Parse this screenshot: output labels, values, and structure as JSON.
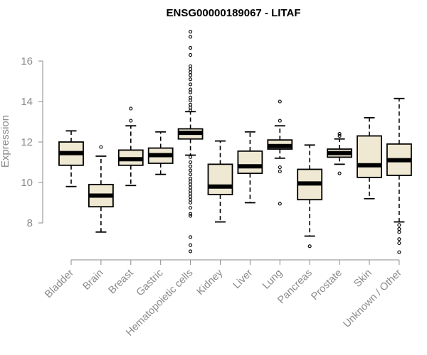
{
  "chart_data": {
    "type": "boxplot",
    "title": "ENSG00000189067 - LITAF",
    "ylabel": "Expression",
    "xlabel": "",
    "ylim": [
      6.2,
      17.6
    ],
    "yticks": [
      8,
      10,
      12,
      14,
      16
    ],
    "box_fill": "#efe9d3",
    "categories": [
      "Bladder",
      "Brain",
      "Breast",
      "Gastric",
      "Hematopoietic cells",
      "Kidney",
      "Liver",
      "Lung",
      "Pancreas",
      "Prostate",
      "Skin",
      "Unknown / Other"
    ],
    "boxes": [
      {
        "whisker_low": 9.8,
        "q1": 10.85,
        "median": 11.45,
        "q3": 12.0,
        "whisker_high": 12.55,
        "outliers": []
      },
      {
        "whisker_low": 7.55,
        "q1": 8.8,
        "median": 9.35,
        "q3": 9.9,
        "whisker_high": 11.3,
        "outliers": [
          11.75
        ]
      },
      {
        "whisker_low": 9.85,
        "q1": 10.85,
        "median": 11.15,
        "q3": 11.6,
        "whisker_high": 12.8,
        "outliers": [
          13.05,
          13.65
        ]
      },
      {
        "whisker_low": 10.4,
        "q1": 10.95,
        "median": 11.35,
        "q3": 11.7,
        "whisker_high": 12.5,
        "outliers": []
      },
      {
        "whisker_low": 11.35,
        "q1": 12.15,
        "median": 12.45,
        "q3": 12.65,
        "whisker_high": 13.5,
        "outliers": [
          17.45,
          17.2,
          16.65,
          16.3,
          15.75,
          15.6,
          15.45,
          15.3,
          15.1,
          14.85,
          14.6,
          14.45,
          14.2,
          14.05,
          13.85,
          13.7,
          13.55,
          11.25,
          11.0,
          10.8,
          10.6,
          10.4,
          10.2,
          10.05,
          9.9,
          9.75,
          9.6,
          9.45,
          9.3,
          9.15,
          9.0,
          8.75,
          8.45,
          8.35,
          7.3,
          6.9,
          6.6
        ]
      },
      {
        "whisker_low": 8.05,
        "q1": 9.4,
        "median": 9.8,
        "q3": 10.9,
        "whisker_high": 12.05,
        "outliers": []
      },
      {
        "whisker_low": 9.0,
        "q1": 10.45,
        "median": 10.8,
        "q3": 11.55,
        "whisker_high": 12.5,
        "outliers": []
      },
      {
        "whisker_low": 11.2,
        "q1": 11.65,
        "median": 11.8,
        "q3": 12.1,
        "whisker_high": 12.8,
        "outliers": [
          13.05,
          14.0,
          10.75,
          10.55,
          8.95
        ]
      },
      {
        "whisker_low": 7.35,
        "q1": 9.15,
        "median": 9.95,
        "q3": 10.65,
        "whisker_high": 11.85,
        "outliers": [
          6.85
        ]
      },
      {
        "whisker_low": 10.9,
        "q1": 11.25,
        "median": 11.45,
        "q3": 11.65,
        "whisker_high": 12.15,
        "outliers": [
          12.4,
          12.3,
          10.45
        ]
      },
      {
        "whisker_low": 9.2,
        "q1": 10.25,
        "median": 10.85,
        "q3": 12.3,
        "whisker_high": 13.2,
        "outliers": []
      },
      {
        "whisker_low": 8.05,
        "q1": 10.35,
        "median": 11.1,
        "q3": 11.9,
        "whisker_high": 14.15,
        "outliers": [
          7.9,
          7.7,
          7.55,
          7.2,
          7.0,
          6.55
        ]
      }
    ]
  }
}
